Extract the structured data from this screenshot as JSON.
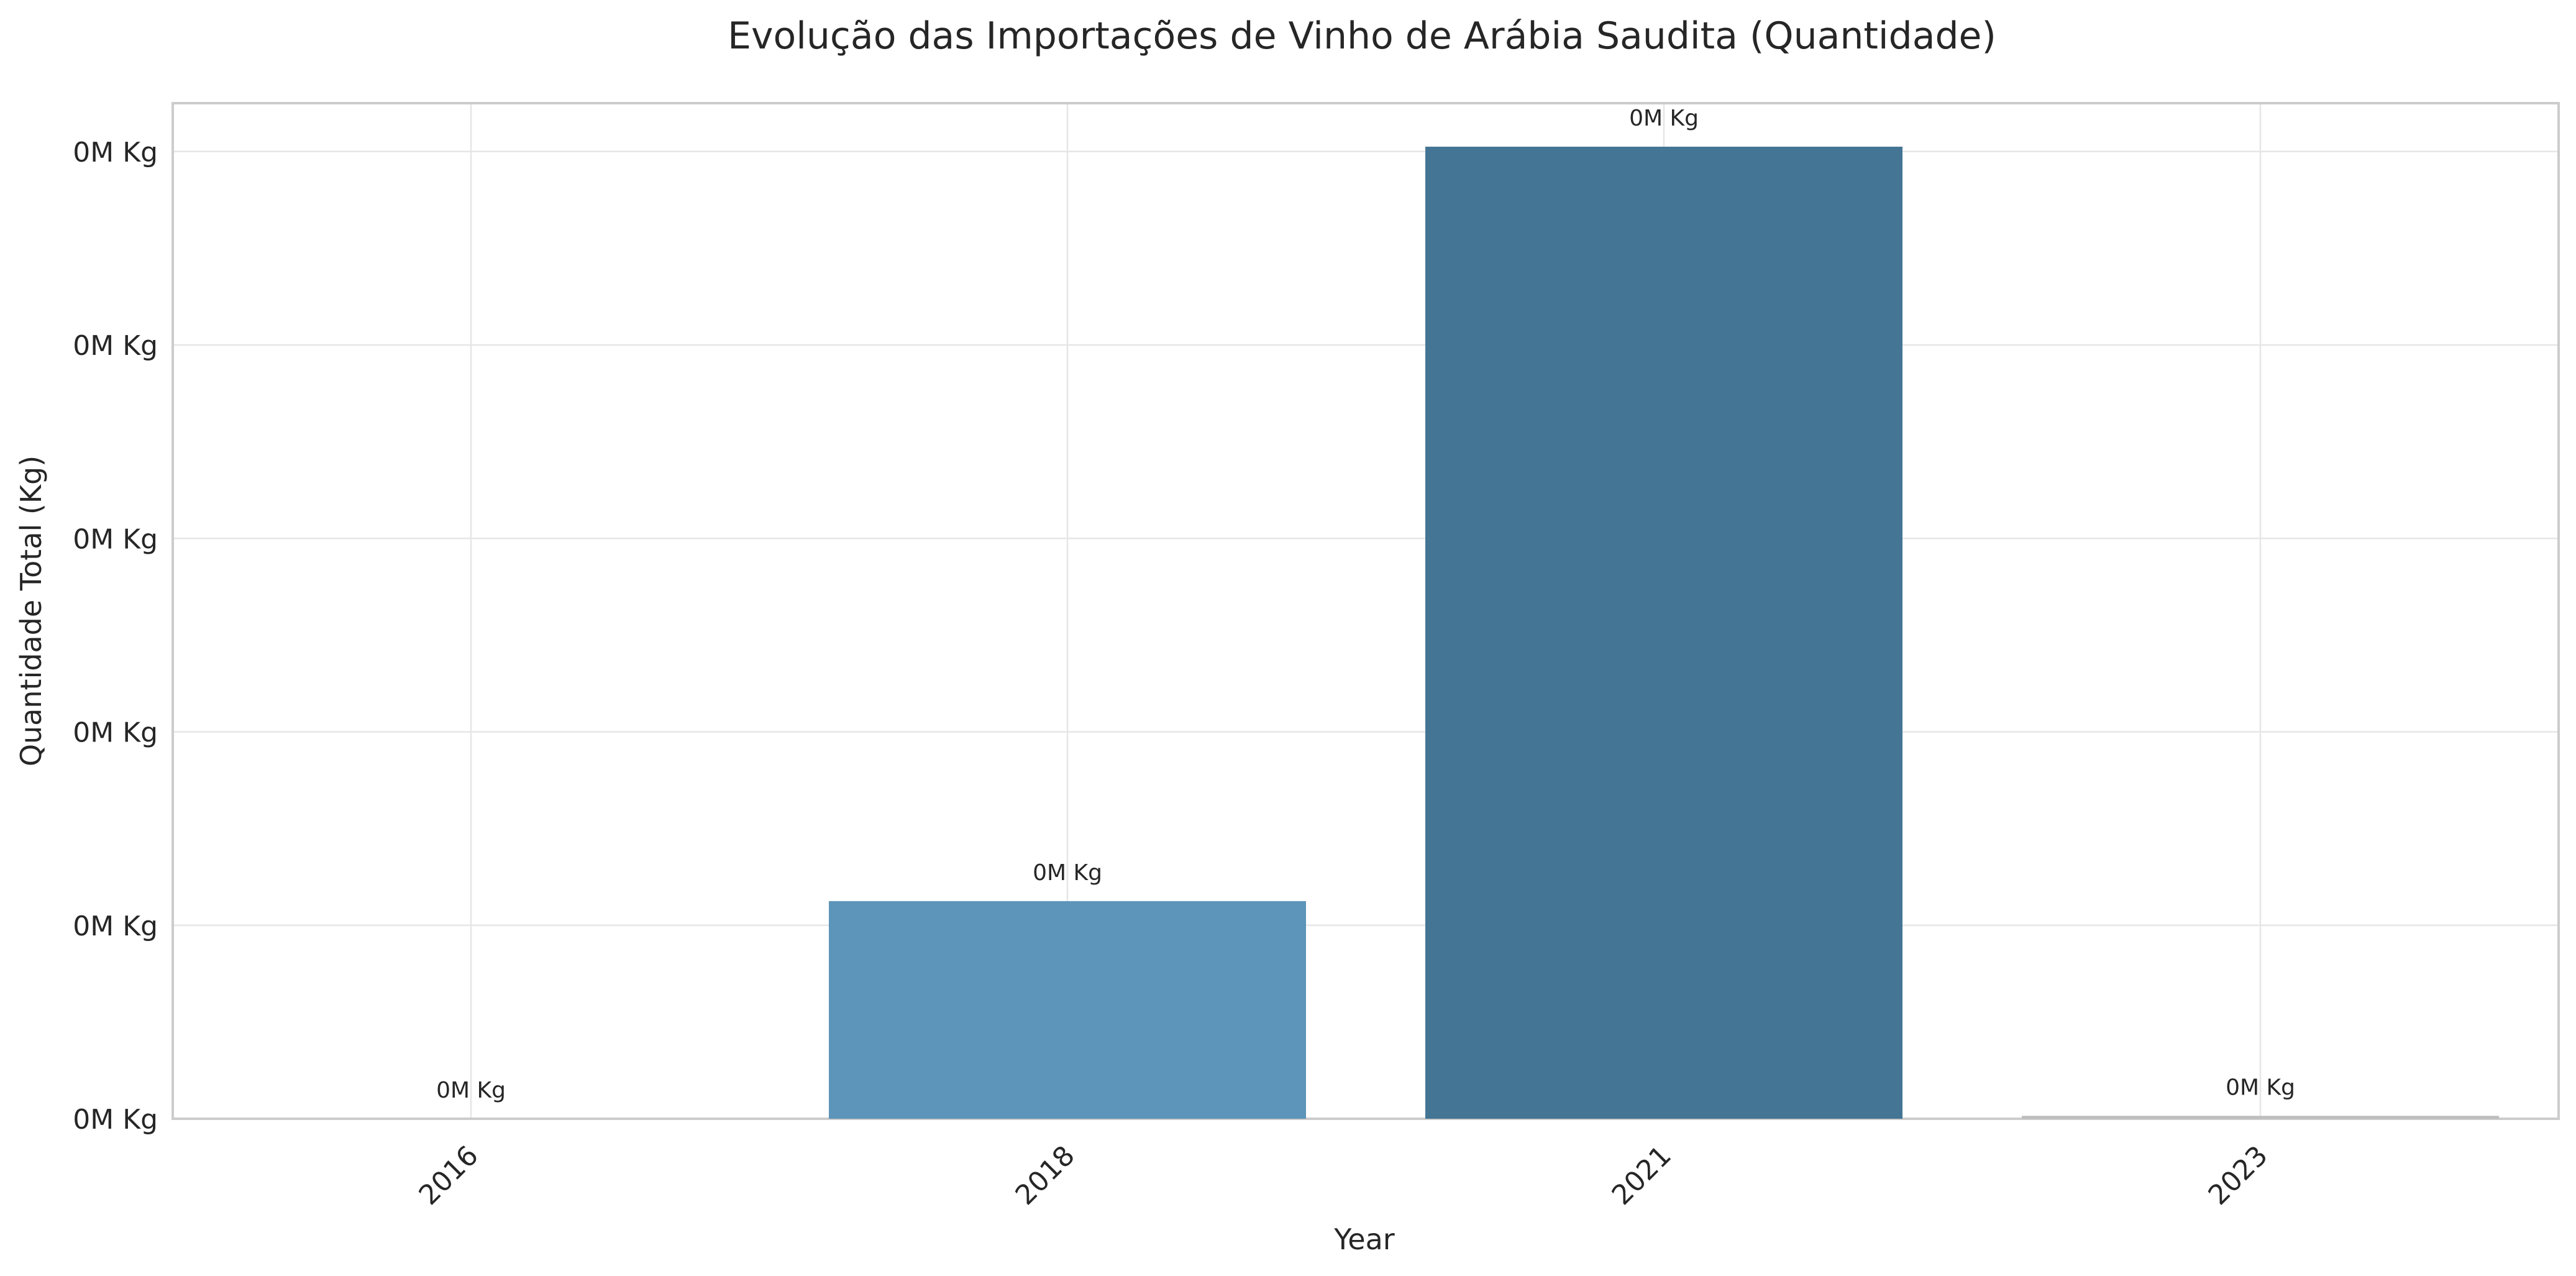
{
  "chart_data": {
    "type": "bar",
    "title": "Evolução das Importações de Vinho de Arábia Saudita (Quantidade)",
    "xlabel": "Year",
    "ylabel": "Quantidade Total (Kg)",
    "categories": [
      "2016",
      "2018",
      "2021",
      "2023"
    ],
    "values": [
      0.0,
      0.000225,
      0.001005,
      3e-06
    ],
    "value_labels": [
      "0M Kg",
      "0M Kg",
      "0M Kg",
      "0M Kg"
    ],
    "y_ticks": [
      0.0,
      0.0002,
      0.0004,
      0.0006,
      0.0008,
      0.001
    ],
    "y_tick_labels": [
      "0M Kg",
      "0M Kg",
      "0M Kg",
      "0M Kg",
      "0M Kg",
      "0M Kg"
    ],
    "ylim": [
      0,
      0.00105
    ],
    "grid": true,
    "colors": [
      "#7eb3d8",
      "#5d94b9",
      "#447594",
      "#bdbdbd"
    ]
  }
}
